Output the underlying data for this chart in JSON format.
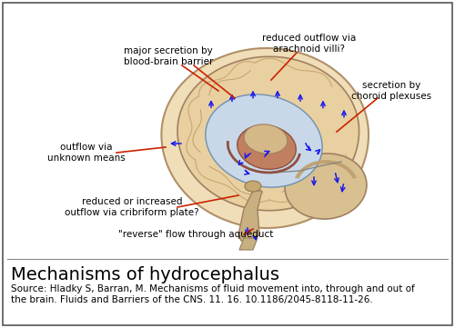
{
  "title": "Mechanisms of hydrocephalus",
  "source_line1": "Source: Hladky S, Barran, M. Mechanisms of fluid movement into, through and out of",
  "source_line2": "the brain. Fluids and Barriers of the CNS. 11. 16. 10.1186/2045-8118-11-26.",
  "background_color": "#ffffff",
  "border_color": "#555555",
  "text_color": "#000000",
  "red": "#cc2200",
  "blue": "#1a1aee",
  "skull_face": "#F0DEB8",
  "skull_edge": "#B0906A",
  "brain_face": "#E8D0A0",
  "brain_edge": "#A08060",
  "csf_face": "#C8D8E8",
  "csf_edge": "#7090B0",
  "corpus_face": "#C08060",
  "corpus_edge": "#905040",
  "cerebellum_face": "#D8C090",
  "brainstem_face": "#C8B080",
  "annotation_fontsize": 7.5,
  "title_fontsize": 14,
  "source_fontsize": 7.5,
  "fig_width": 5.0,
  "fig_height": 3.61,
  "dpi": 100
}
